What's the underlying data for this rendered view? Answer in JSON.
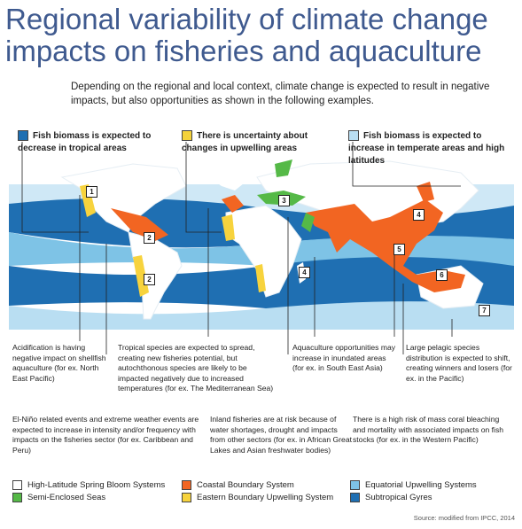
{
  "title": "Regional variability of climate change impacts on fisheries and aquaculture",
  "intro": "Depending on the regional and local context, climate change is expected to result in negative impacts, but also opportunities as shown in the following examples.",
  "keys": [
    {
      "text": "Fish biomass is expected to decrease in tropical areas",
      "color": "#1f6fb2"
    },
    {
      "text": "There is uncertainty about changes in upwelling areas",
      "color": "#f4d23c"
    },
    {
      "text": "Fish biomass is expected to increase in temperate areas and high latitudes",
      "color": "#b9def2"
    }
  ],
  "markers": [
    "1",
    "2",
    "2",
    "3",
    "4",
    "4",
    "5",
    "6",
    "7"
  ],
  "annotations": [
    {
      "id": "acidification",
      "text": "Acidification is having negative impact on shellfish aquaculture (for ex. North East Pacific)"
    },
    {
      "id": "tropical",
      "text": "Tropical species are expected to spread, creating new fisheries potential, but autochthonous species are likely to be impacted negatively due to increased temperatures (for ex. The Mediterranean Sea)"
    },
    {
      "id": "aquaculture",
      "text": "Aquaculture opportunities may increase in inundated areas (for ex. in South East Asia)"
    },
    {
      "id": "pelagic",
      "text": "Large pelagic species distribution is expected to shift, creating winners and losers (for ex. in the Pacific)"
    },
    {
      "id": "elnino",
      "text": "El-Niño related events and extreme weather events are expected to increase in intensity and/or frequency with impacts on the fisheries sector (for ex. Caribbean and Peru)"
    },
    {
      "id": "inland",
      "text": "Inland fisheries are at risk because of water shortages, drought and impacts from other sectors (for ex. in African Great Lakes and Asian freshwater bodies)"
    },
    {
      "id": "coral",
      "text": "There is a high risk of mass coral bleaching and mortality with associated impacts on fish stocks (for ex. in the Western Pacific)"
    }
  ],
  "legend": [
    {
      "label": "High-Latitude Spring Bloom Systems",
      "color": "#ffffff"
    },
    {
      "label": "Coastal Boundary System",
      "color": "#f26522"
    },
    {
      "label": "Equatorial Upwelling Systems",
      "color": "#7ec3e6"
    },
    {
      "label": "Semi-Enclosed Seas",
      "color": "#55b947"
    },
    {
      "label": "Eastern Boundary Upwelling System",
      "color": "#f7d33d"
    },
    {
      "label": "Subtropical Gyres",
      "color": "#1f6fb2"
    }
  ],
  "source": "Source: modified from IPCC, 2014"
}
